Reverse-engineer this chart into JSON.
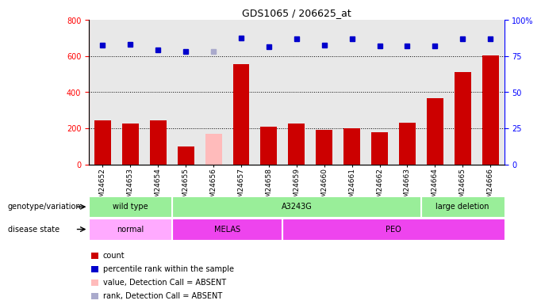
{
  "title": "GDS1065 / 206625_at",
  "samples": [
    "GSM24652",
    "GSM24653",
    "GSM24654",
    "GSM24655",
    "GSM24656",
    "GSM24657",
    "GSM24658",
    "GSM24659",
    "GSM24660",
    "GSM24661",
    "GSM24662",
    "GSM24663",
    "GSM24664",
    "GSM24665",
    "GSM24666"
  ],
  "bar_values": [
    245,
    225,
    245,
    100,
    170,
    555,
    210,
    225,
    190,
    200,
    180,
    230,
    365,
    510,
    605
  ],
  "bar_absent": [
    false,
    false,
    false,
    false,
    true,
    false,
    false,
    false,
    false,
    false,
    false,
    false,
    false,
    false,
    false
  ],
  "dot_values": [
    82.5,
    83.0,
    79.5,
    78.0,
    78.0,
    87.5,
    81.5,
    87.0,
    82.5,
    87.0,
    82.0,
    82.0,
    82.0,
    87.0,
    87.0
  ],
  "dot_absent": [
    false,
    false,
    false,
    false,
    true,
    false,
    false,
    false,
    false,
    false,
    false,
    false,
    false,
    false,
    false
  ],
  "ylim_left": [
    0,
    800
  ],
  "ylim_right": [
    0,
    100
  ],
  "yticks_left": [
    0,
    200,
    400,
    600,
    800
  ],
  "yticks_right": [
    0,
    25,
    50,
    75,
    100
  ],
  "ytick_labels_right": [
    "0",
    "25",
    "50",
    "75",
    "100%"
  ],
  "grid_lines": [
    200,
    400,
    600
  ],
  "bar_color": "#cc0000",
  "bar_absent_color": "#ffbbbb",
  "dot_color": "#0000cc",
  "dot_absent_color": "#aaaacc",
  "bg_color": "#ffffff",
  "plot_bg": "#e8e8e8",
  "genotype_groups": [
    {
      "label": "wild type",
      "start": 0,
      "end": 3,
      "color": "#99ee99"
    },
    {
      "label": "A3243G",
      "start": 3,
      "end": 12,
      "color": "#99ee99"
    },
    {
      "label": "large deletion",
      "start": 12,
      "end": 15,
      "color": "#99ee99"
    }
  ],
  "disease_groups": [
    {
      "label": "normal",
      "start": 0,
      "end": 3,
      "color": "#ffaaff"
    },
    {
      "label": "MELAS",
      "start": 3,
      "end": 7,
      "color": "#ee44ee"
    },
    {
      "label": "PEO",
      "start": 7,
      "end": 15,
      "color": "#ee44ee"
    }
  ],
  "legend_items": [
    {
      "label": "count",
      "color": "#cc0000"
    },
    {
      "label": "percentile rank within the sample",
      "color": "#0000cc"
    },
    {
      "label": "value, Detection Call = ABSENT",
      "color": "#ffbbbb"
    },
    {
      "label": "rank, Detection Call = ABSENT",
      "color": "#aaaacc"
    }
  ]
}
